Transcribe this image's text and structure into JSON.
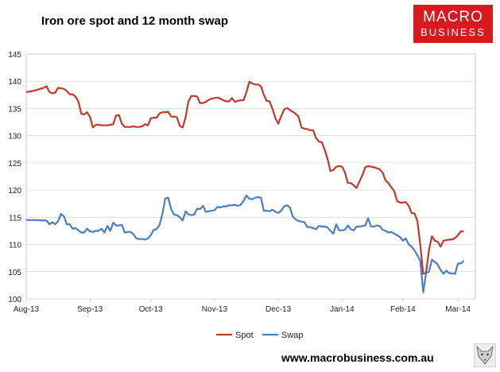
{
  "title": "Iron ore spot and 12 month swap",
  "logo": {
    "line1": "MACRO",
    "line2": "BUSINESS",
    "color": "#d71920"
  },
  "website": "www.macrobusiness.com.au",
  "chart_data": {
    "type": "line",
    "title": "Iron ore spot and 12 month swap",
    "ylim": [
      100,
      145
    ],
    "yticks": [
      100,
      105,
      110,
      115,
      120,
      125,
      130,
      135,
      140,
      145
    ],
    "xlim": [
      0,
      155
    ],
    "xtick_positions": [
      0,
      22,
      43,
      65,
      87,
      109,
      130,
      149
    ],
    "xtick_labels": [
      "Aug-13",
      "Sep-13",
      "Oct-13",
      "Nov-13",
      "Dec-13",
      "Jan-14",
      "Feb-14",
      "Mar-14"
    ],
    "grid": "horizontal",
    "legend_position": "bottom",
    "series": [
      {
        "name": "Spot",
        "color": "#c0392b",
        "points": [
          [
            0,
            138
          ],
          [
            3,
            138.3
          ],
          [
            6,
            138.8
          ],
          [
            7,
            139.1
          ],
          [
            8,
            138
          ],
          [
            9,
            137.8
          ],
          [
            10,
            137.9
          ],
          [
            11,
            138.8
          ],
          [
            12,
            138.7
          ],
          [
            13,
            138.6
          ],
          [
            14,
            138.2
          ],
          [
            15,
            137.6
          ],
          [
            16,
            137.6
          ],
          [
            17,
            137.2
          ],
          [
            18,
            136.3
          ],
          [
            19,
            134
          ],
          [
            20,
            133.9
          ],
          [
            21,
            134.3
          ],
          [
            22,
            133.5
          ],
          [
            23,
            131.5
          ],
          [
            24,
            132
          ],
          [
            25,
            132
          ],
          [
            26,
            131.9
          ],
          [
            27,
            131.9
          ],
          [
            28,
            131.9
          ],
          [
            29,
            132
          ],
          [
            30,
            132.1
          ],
          [
            31,
            133.7
          ],
          [
            32,
            133.8
          ],
          [
            33,
            132.2
          ],
          [
            34,
            131.6
          ],
          [
            35,
            131.6
          ],
          [
            36,
            131.6
          ],
          [
            37,
            131.7
          ],
          [
            38,
            131.6
          ],
          [
            39,
            131.6
          ],
          [
            40,
            131.7
          ],
          [
            41,
            132.1
          ],
          [
            42,
            131.9
          ],
          [
            43,
            133.2
          ],
          [
            44,
            133.3
          ],
          [
            45,
            133.3
          ],
          [
            46,
            134.1
          ],
          [
            47,
            134.3
          ],
          [
            48,
            134.3
          ],
          [
            49,
            134.4
          ],
          [
            50,
            133.5
          ],
          [
            51,
            133.5
          ],
          [
            52,
            133.4
          ],
          [
            53,
            131.8
          ],
          [
            54,
            131.5
          ],
          [
            55,
            133.4
          ],
          [
            56,
            136.3
          ],
          [
            57,
            137.3
          ],
          [
            58,
            137.3
          ],
          [
            59,
            137.2
          ],
          [
            60,
            136
          ],
          [
            61,
            136
          ],
          [
            62,
            136.2
          ],
          [
            63,
            136.6
          ],
          [
            64,
            136.8
          ],
          [
            65,
            136.9
          ],
          [
            66,
            137
          ],
          [
            67,
            136.8
          ],
          [
            68,
            136.5
          ],
          [
            69,
            136.3
          ],
          [
            70,
            136.3
          ],
          [
            71,
            136.9
          ],
          [
            72,
            136.2
          ],
          [
            73,
            136.4
          ],
          [
            74,
            136.5
          ],
          [
            75,
            136.5
          ],
          [
            76,
            138
          ],
          [
            77,
            139.9
          ],
          [
            78,
            139.6
          ],
          [
            79,
            139.4
          ],
          [
            80,
            139.4
          ],
          [
            81,
            139.1
          ],
          [
            82,
            137.5
          ],
          [
            83,
            136.4
          ],
          [
            84,
            136.3
          ],
          [
            85,
            134.9
          ],
          [
            86,
            133.2
          ],
          [
            87,
            132.2
          ],
          [
            88,
            133.6
          ],
          [
            89,
            134.8
          ],
          [
            90,
            135.1
          ],
          [
            91,
            134.7
          ],
          [
            92,
            134.4
          ],
          [
            93,
            134
          ],
          [
            94,
            133.5
          ],
          [
            95,
            131.5
          ],
          [
            96,
            131.3
          ],
          [
            97,
            131.2
          ],
          [
            98,
            131
          ],
          [
            99,
            131
          ],
          [
            100,
            129.6
          ],
          [
            101,
            128.9
          ],
          [
            102,
            128.8
          ],
          [
            103,
            127.4
          ],
          [
            104,
            125.7
          ],
          [
            105,
            123.5
          ],
          [
            106,
            123.7
          ],
          [
            107,
            124.3
          ],
          [
            108,
            124.4
          ],
          [
            109,
            124.3
          ],
          [
            110,
            123.2
          ],
          [
            111,
            121.3
          ],
          [
            112,
            121.3
          ],
          [
            113,
            120.9
          ],
          [
            114,
            120.4
          ],
          [
            115,
            121.6
          ],
          [
            116,
            122.7
          ],
          [
            117,
            124.2
          ],
          [
            118,
            124.4
          ],
          [
            119,
            124.3
          ],
          [
            120,
            124.2
          ],
          [
            121,
            124
          ],
          [
            122,
            123.8
          ],
          [
            123,
            123.2
          ],
          [
            124,
            121.8
          ],
          [
            125,
            121.3
          ],
          [
            126,
            120.5
          ],
          [
            127,
            119.8
          ],
          [
            128,
            118
          ],
          [
            129,
            117.7
          ],
          [
            130,
            117.7
          ],
          [
            131,
            117.8
          ],
          [
            132,
            117.1
          ],
          [
            133,
            115.8
          ],
          [
            134,
            115.7
          ],
          [
            135,
            114.3
          ],
          [
            136,
            110
          ],
          [
            137,
            104.6
          ],
          [
            138,
            104.8
          ],
          [
            139,
            109
          ],
          [
            140,
            111.5
          ],
          [
            141,
            110.7
          ],
          [
            142,
            110.5
          ],
          [
            143,
            109.6
          ],
          [
            144,
            110.7
          ],
          [
            145,
            110.8
          ],
          [
            146,
            110.9
          ],
          [
            147,
            110.9
          ],
          [
            148,
            111.2
          ],
          [
            149,
            111.7
          ],
          [
            150,
            112.4
          ],
          [
            151,
            112.4
          ]
        ]
      },
      {
        "name": "Swap",
        "color": "#4a7ebf",
        "points": [
          [
            0,
            114.5
          ],
          [
            3,
            114.5
          ],
          [
            6,
            114.4
          ],
          [
            7,
            114.4
          ],
          [
            8,
            113.7
          ],
          [
            9,
            114.1
          ],
          [
            10,
            113.7
          ],
          [
            11,
            114.3
          ],
          [
            12,
            115.6
          ],
          [
            13,
            115.2
          ],
          [
            14,
            113.7
          ],
          [
            15,
            113.7
          ],
          [
            16,
            112.9
          ],
          [
            17,
            113
          ],
          [
            18,
            112.6
          ],
          [
            19,
            112.2
          ],
          [
            20,
            112.2
          ],
          [
            21,
            112.9
          ],
          [
            22,
            112.4
          ],
          [
            23,
            112.3
          ],
          [
            24,
            112.5
          ],
          [
            25,
            112.5
          ],
          [
            26,
            112.9
          ],
          [
            27,
            112.2
          ],
          [
            28,
            113.4
          ],
          [
            29,
            112.5
          ],
          [
            30,
            114
          ],
          [
            31,
            113.5
          ],
          [
            32,
            113.5
          ],
          [
            33,
            113.6
          ],
          [
            34,
            112.2
          ],
          [
            35,
            112.3
          ],
          [
            36,
            112.3
          ],
          [
            37,
            111.9
          ],
          [
            38,
            111.1
          ],
          [
            39,
            111
          ],
          [
            40,
            111
          ],
          [
            41,
            110.9
          ],
          [
            42,
            111.1
          ],
          [
            43,
            111.7
          ],
          [
            44,
            112.7
          ],
          [
            45,
            112.8
          ],
          [
            46,
            113.6
          ],
          [
            47,
            115.6
          ],
          [
            48,
            118.5
          ],
          [
            49,
            118.6
          ],
          [
            50,
            116.5
          ],
          [
            51,
            115.5
          ],
          [
            52,
            115.4
          ],
          [
            53,
            115
          ],
          [
            54,
            114.4
          ],
          [
            55,
            116.1
          ],
          [
            56,
            115.5
          ],
          [
            57,
            115.4
          ],
          [
            58,
            115.5
          ],
          [
            59,
            116.6
          ],
          [
            60,
            116.5
          ],
          [
            61,
            117.1
          ],
          [
            62,
            116
          ],
          [
            63,
            116.1
          ],
          [
            64,
            116.2
          ],
          [
            65,
            116.3
          ],
          [
            66,
            116.9
          ],
          [
            67,
            116.8
          ],
          [
            68,
            117
          ],
          [
            69,
            117
          ],
          [
            70,
            117.2
          ],
          [
            71,
            117.2
          ],
          [
            72,
            117.3
          ],
          [
            73,
            117.1
          ],
          [
            74,
            117.3
          ],
          [
            75,
            118
          ],
          [
            76,
            119
          ],
          [
            77,
            118.4
          ],
          [
            78,
            118.3
          ],
          [
            79,
            118.6
          ],
          [
            80,
            118.7
          ],
          [
            81,
            118.6
          ],
          [
            82,
            116.2
          ],
          [
            83,
            116.2
          ],
          [
            84,
            116.1
          ],
          [
            85,
            116.4
          ],
          [
            86,
            116
          ],
          [
            87,
            115.8
          ],
          [
            88,
            116.2
          ],
          [
            89,
            117
          ],
          [
            90,
            117.2
          ],
          [
            91,
            116.8
          ],
          [
            92,
            115.1
          ],
          [
            93,
            114.6
          ],
          [
            94,
            114.3
          ],
          [
            95,
            114.2
          ],
          [
            96,
            114.1
          ],
          [
            97,
            113.2
          ],
          [
            98,
            113.2
          ],
          [
            99,
            113
          ],
          [
            100,
            112.8
          ],
          [
            101,
            113.4
          ],
          [
            102,
            113.3
          ],
          [
            103,
            113.3
          ],
          [
            104,
            113.1
          ],
          [
            105,
            112.5
          ],
          [
            106,
            112
          ],
          [
            107,
            113.7
          ],
          [
            108,
            112.6
          ],
          [
            109,
            112.6
          ],
          [
            110,
            112.7
          ],
          [
            111,
            113.5
          ],
          [
            112,
            112.8
          ],
          [
            113,
            112.6
          ],
          [
            114,
            113.3
          ],
          [
            115,
            113.3
          ],
          [
            116,
            113.4
          ],
          [
            117,
            113.5
          ],
          [
            118,
            114.8
          ],
          [
            119,
            113.3
          ],
          [
            120,
            113.3
          ],
          [
            121,
            113.5
          ],
          [
            122,
            113.4
          ],
          [
            123,
            112.7
          ],
          [
            124,
            112.5
          ],
          [
            125,
            112.2
          ],
          [
            126,
            112.3
          ],
          [
            127,
            112
          ],
          [
            128,
            111.7
          ],
          [
            129,
            111.4
          ],
          [
            130,
            110.7
          ],
          [
            131,
            111.1
          ],
          [
            132,
            110
          ],
          [
            133,
            109.6
          ],
          [
            134,
            108.9
          ],
          [
            135,
            108
          ],
          [
            136,
            107
          ],
          [
            137,
            101.2
          ],
          [
            138,
            104.7
          ],
          [
            139,
            105
          ],
          [
            140,
            107.2
          ],
          [
            141,
            106.8
          ],
          [
            142,
            106.3
          ],
          [
            143,
            105.3
          ],
          [
            144,
            104.6
          ],
          [
            145,
            105.2
          ],
          [
            146,
            104.7
          ],
          [
            147,
            104.7
          ],
          [
            148,
            104.6
          ],
          [
            149,
            106.5
          ],
          [
            150,
            106.5
          ],
          [
            151,
            107
          ]
        ]
      }
    ]
  }
}
